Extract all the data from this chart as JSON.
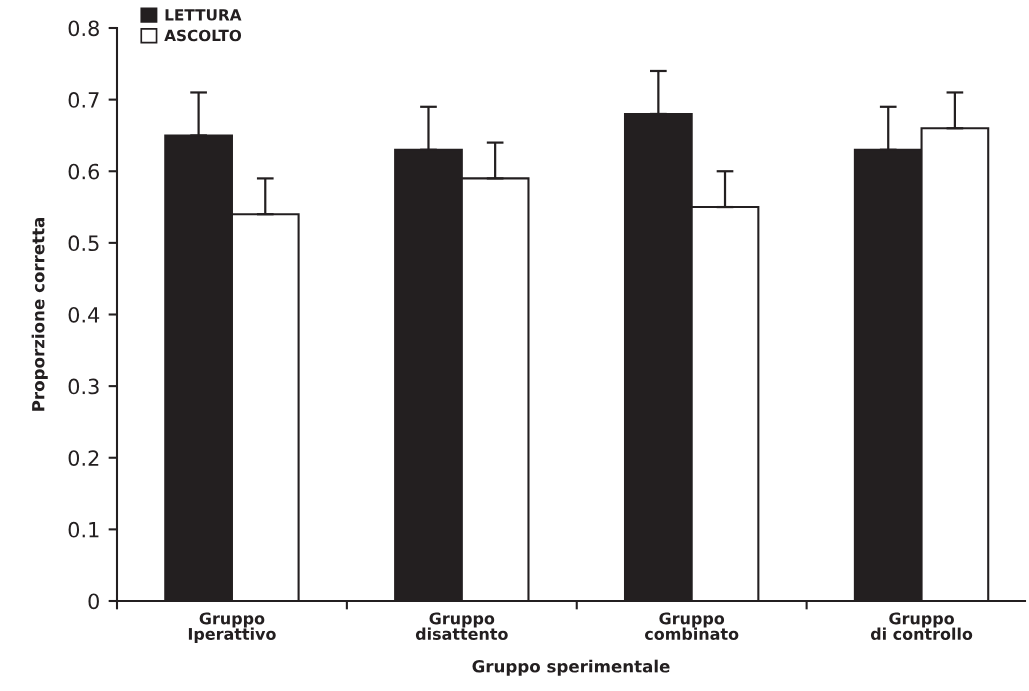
{
  "chart_data": {
    "type": "bar",
    "xlabel": "Gruppo sperimentale",
    "ylabel": "Proporzione corretta",
    "categories": [
      "Gruppo\nIperattivo",
      "Gruppo\ndisattento",
      "Gruppo\ncombinato",
      "Gruppo\ndi controllo"
    ],
    "series": [
      {
        "name": "LETTURA",
        "color": "#231f20",
        "values": [
          0.65,
          0.63,
          0.68,
          0.63
        ],
        "errors": [
          [
            0.65,
            0.71
          ],
          [
            0.63,
            0.69
          ],
          [
            0.68,
            0.74
          ],
          [
            0.63,
            0.69
          ]
        ]
      },
      {
        "name": "ASCOLTO",
        "color": "#ffffff",
        "values": [
          0.54,
          0.59,
          0.55,
          0.66
        ],
        "errors": [
          [
            0.54,
            0.59
          ],
          [
            0.59,
            0.64
          ],
          [
            0.55,
            0.6
          ],
          [
            0.66,
            0.71
          ]
        ]
      }
    ],
    "ylim": [
      0,
      0.8
    ],
    "yticks": [
      0,
      0.1,
      0.2,
      0.3,
      0.4,
      0.5,
      0.6,
      0.7,
      0.8
    ],
    "grid": false,
    "legend": "top left"
  }
}
